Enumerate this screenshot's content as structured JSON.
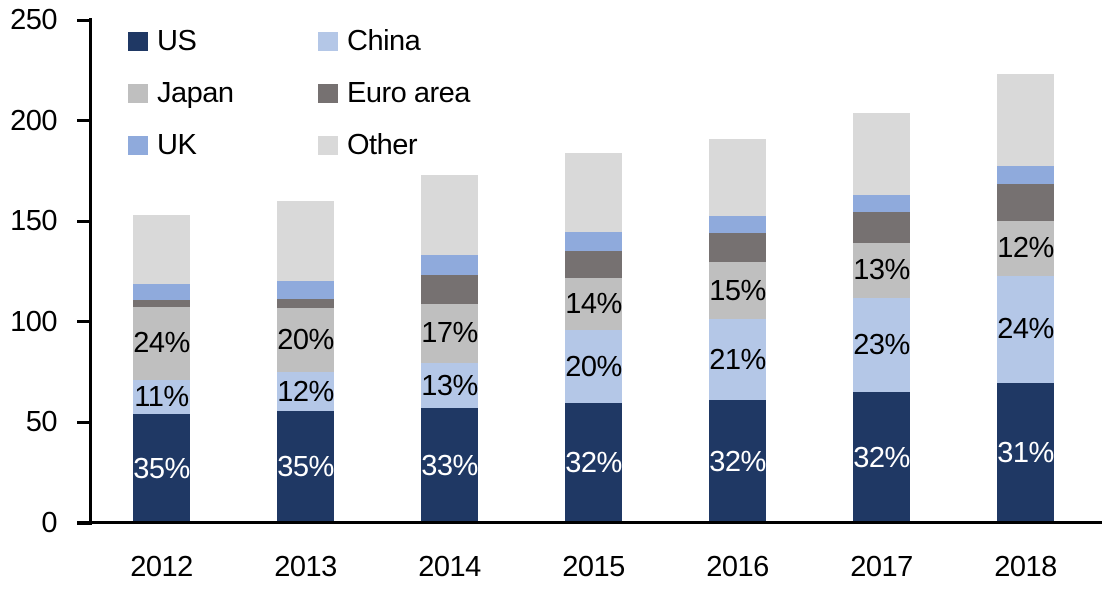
{
  "chart_data": {
    "type": "bar",
    "stacked": true,
    "title": "",
    "xlabel": "",
    "ylabel": "",
    "categories": [
      "2012",
      "2013",
      "2014",
      "2015",
      "2016",
      "2017",
      "2018"
    ],
    "series": [
      {
        "name": "US",
        "color": "#1F3864",
        "values": [
          54,
          55.5,
          57,
          59.5,
          61,
          65,
          69.5
        ],
        "labels": [
          "35%",
          "35%",
          "33%",
          "32%",
          "32%",
          "32%",
          "31%"
        ],
        "label_color": "#FFFFFF"
      },
      {
        "name": "China",
        "color": "#B4C7E7",
        "values": [
          17,
          19.5,
          22.5,
          36.5,
          40.5,
          47,
          53.5
        ],
        "labels": [
          "11%",
          "12%",
          "13%",
          "20%",
          "21%",
          "23%",
          "24%"
        ],
        "label_color": "#000000"
      },
      {
        "name": "Japan",
        "color": "#BFBFBF",
        "values": [
          36.5,
          32,
          29.5,
          26,
          28,
          27,
          27
        ],
        "labels": [
          "24%",
          "20%",
          "17%",
          "14%",
          "15%",
          "13%",
          "12%"
        ],
        "label_color": "#000000"
      },
      {
        "name": "Euro area",
        "color": "#767171",
        "values": [
          3.5,
          4.5,
          14.5,
          13,
          14.5,
          15.5,
          18.5
        ],
        "labels": null,
        "label_color": null
      },
      {
        "name": "UK",
        "color": "#8FAADC",
        "values": [
          8,
          9,
          9.5,
          9.5,
          8.5,
          8.5,
          9
        ],
        "labels": null,
        "label_color": null
      },
      {
        "name": "Other",
        "color": "#D9D9D9",
        "values": [
          34,
          39.5,
          40,
          39.5,
          38.5,
          41,
          45.5
        ],
        "labels": null,
        "label_color": null
      }
    ],
    "totals": [
      153,
      160,
      173,
      184,
      191,
      204,
      223
    ],
    "y_axis": {
      "ticks": [
        0,
        50,
        100,
        150,
        200,
        250
      ],
      "range": [
        0,
        250
      ]
    },
    "legend": {
      "position": "top-left",
      "columns": [
        [
          "US",
          "Japan",
          "UK"
        ],
        [
          "China",
          "Euro area",
          "Other"
        ]
      ]
    },
    "grid": false,
    "axis_color": "#000000",
    "background": "#FFFFFF"
  }
}
